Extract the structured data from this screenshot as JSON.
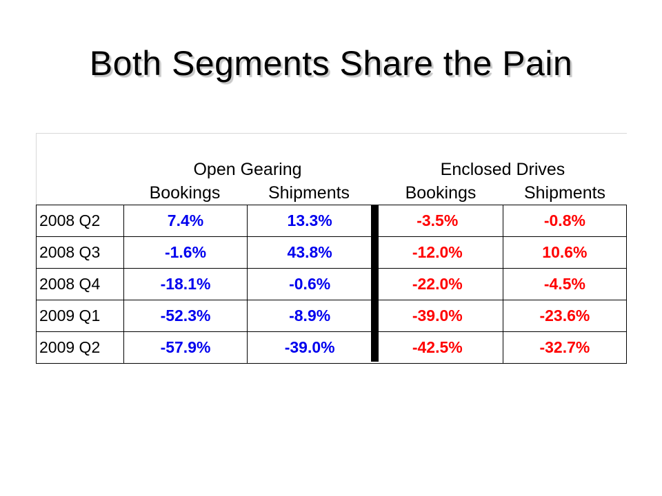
{
  "title": "Both Segments Share the Pain",
  "table": {
    "groups": [
      {
        "label": "Open Gearing",
        "subheaders": [
          "Bookings",
          "Shipments"
        ]
      },
      {
        "label": "Enclosed Drives",
        "subheaders": [
          "Bookings",
          "Shipments"
        ]
      }
    ],
    "rows": [
      {
        "label": "2008 Q2",
        "og_bookings": "7.4%",
        "og_shipments": "13.3%",
        "ed_bookings": "-3.5%",
        "ed_shipments": "-0.8%"
      },
      {
        "label": "2008 Q3",
        "og_bookings": "-1.6%",
        "og_shipments": "43.8%",
        "ed_bookings": "-12.0%",
        "ed_shipments": "10.6%"
      },
      {
        "label": "2008 Q4",
        "og_bookings": "-18.1%",
        "og_shipments": "-0.6%",
        "ed_bookings": "-22.0%",
        "ed_shipments": "-4.5%"
      },
      {
        "label": "2009 Q1",
        "og_bookings": "-52.3%",
        "og_shipments": "-8.9%",
        "ed_bookings": "-39.0%",
        "ed_shipments": "-23.6%"
      },
      {
        "label": "2009 Q2",
        "og_bookings": "-57.9%",
        "og_shipments": "-39.0%",
        "ed_bookings": "-42.5%",
        "ed_shipments": "-32.7%"
      }
    ]
  },
  "colors": {
    "open_gearing": "#0000ee",
    "enclosed_drives": "#ff0000"
  }
}
